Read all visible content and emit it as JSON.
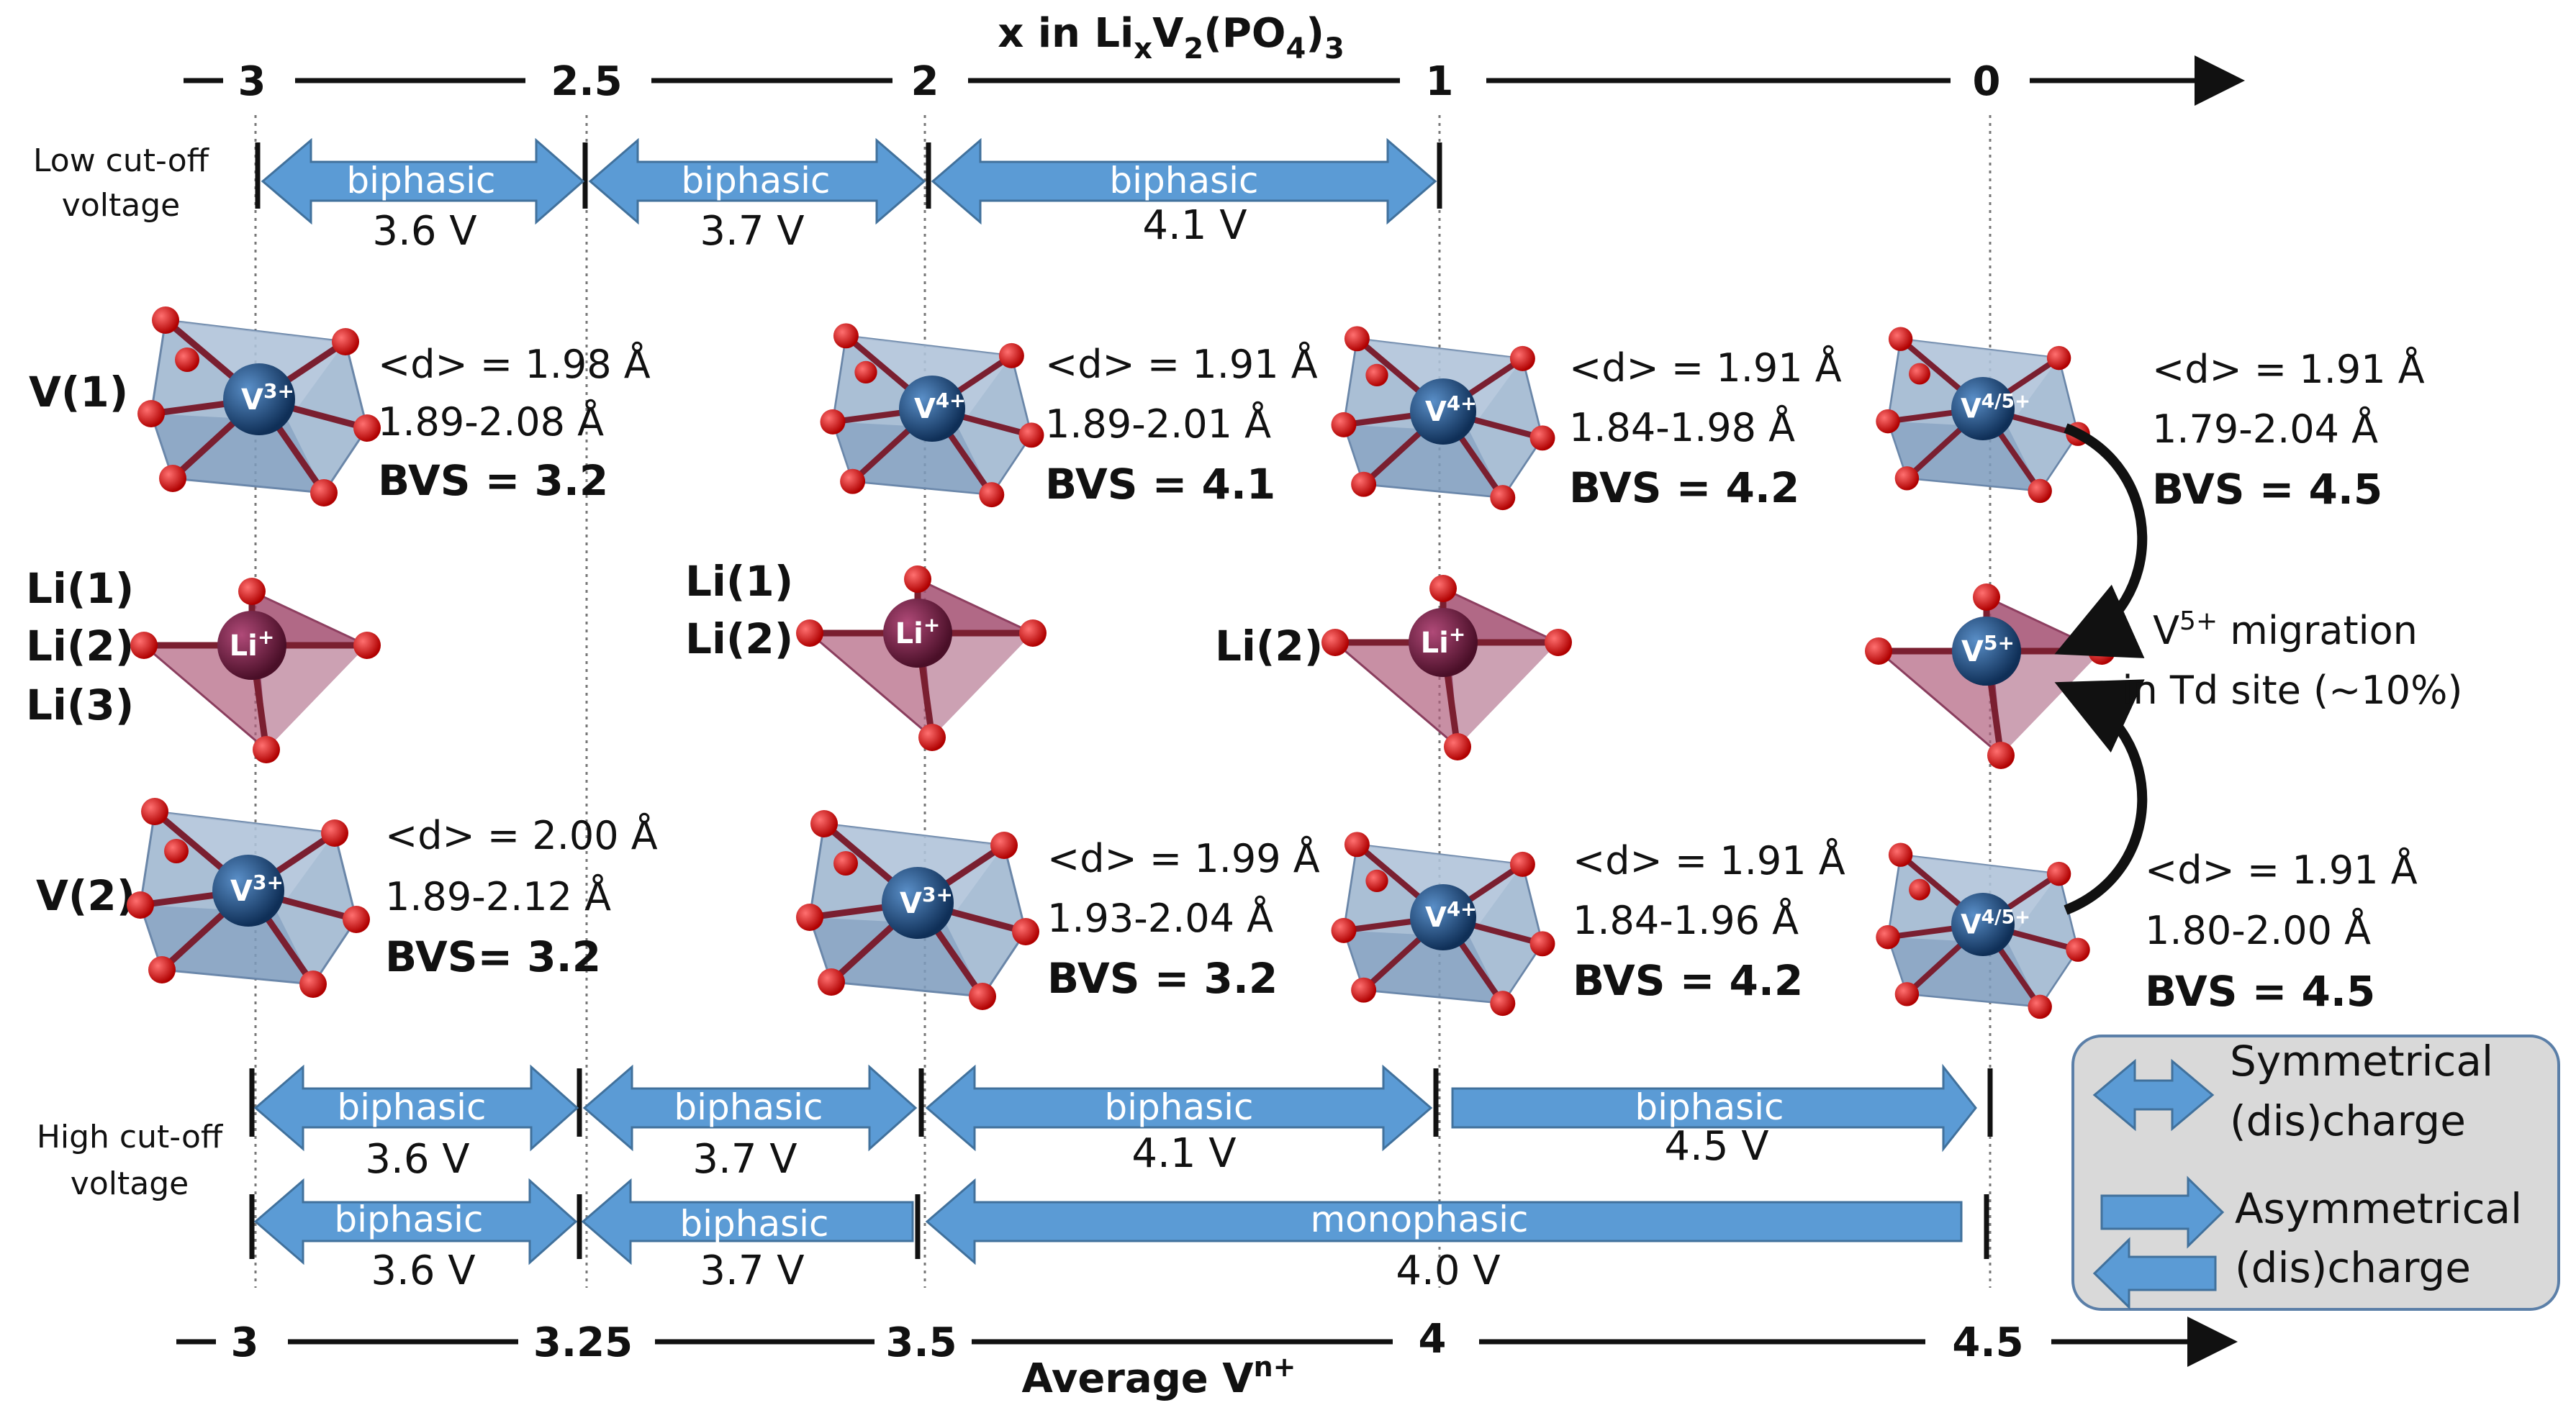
{
  "top_axis": {
    "title_prefix": "x in Li",
    "title_sub_x": "x",
    "title_mid": "V",
    "title_sub_2": "2",
    "title_po": "(PO",
    "title_sub_4": "4",
    "title_close": ")",
    "title_sub_3": "3",
    "ticks": [
      "3",
      "2.5",
      "2",
      "1",
      "0"
    ]
  },
  "bottom_axis": {
    "title": "Average V",
    "title_sup": "n+",
    "ticks": [
      "3",
      "3.25",
      "3.5",
      "4",
      "4.5"
    ]
  },
  "low_cutoff": {
    "label_line1": "Low cut-off",
    "label_line2": "voltage",
    "segments": [
      {
        "text": "biphasic",
        "voltage": "3.6 V"
      },
      {
        "text": "biphasic",
        "voltage": "3.7 V"
      },
      {
        "text": "biphasic",
        "voltage": "4.1 V"
      }
    ]
  },
  "high_cutoff": {
    "label_line1": "High cut-off",
    "label_line2": "voltage",
    "row1": [
      {
        "text": "biphasic",
        "voltage": "3.6 V"
      },
      {
        "text": "biphasic",
        "voltage": "3.7 V"
      },
      {
        "text": "biphasic",
        "voltage": "4.1 V"
      },
      {
        "text": "biphasic",
        "voltage": "4.5 V"
      }
    ],
    "row2": [
      {
        "text": "biphasic",
        "voltage": "3.6 V"
      },
      {
        "text": "biphasic",
        "voltage": "3.7 V"
      },
      {
        "text": "monophasic",
        "voltage": "4.0 V"
      }
    ]
  },
  "row_labels": {
    "v1": "V(1)",
    "v2": "V(2)",
    "li_a": [
      "Li(1)",
      "Li(2)",
      "Li(3)"
    ],
    "li_b": [
      "Li(1)",
      "Li(2)"
    ],
    "li_c": "Li(2)"
  },
  "ions": {
    "v3": "V",
    "v3_sup": "3+",
    "v4": "V",
    "v4_sup": "4+",
    "v45": "V",
    "v45_sup": "4/5+",
    "v5": "V",
    "v5_sup": "5+",
    "li": "Li",
    "li_sup": "+"
  },
  "v1_stats": [
    {
      "d": "<d> = 1.98 Å",
      "range": "1.89-2.08 Å",
      "bvs": "BVS = 3.2"
    },
    {
      "d": "<d> = 1.91 Å",
      "range": "1.89-2.01 Å",
      "bvs": "BVS = 4.1"
    },
    {
      "d": "<d> = 1.91 Å",
      "range": "1.84-1.98 Å",
      "bvs": "BVS = 4.2"
    },
    {
      "d": "<d> = 1.91 Å",
      "range": "1.79-2.04 Å",
      "bvs": "BVS = 4.5"
    }
  ],
  "v2_stats": [
    {
      "d": "<d> = 2.00 Å",
      "range": "1.89-2.12 Å",
      "bvs": "BVS= 3.2"
    },
    {
      "d": "<d> = 1.99 Å",
      "range": "1.93-2.04 Å",
      "bvs": "BVS = 3.2"
    },
    {
      "d": "<d> = 1.91 Å",
      "range": "1.84-1.96 Å",
      "bvs": "BVS = 4.2"
    },
    {
      "d": "<d> = 1.91 Å",
      "range": "1.80-2.00 Å",
      "bvs": "BVS = 4.5"
    }
  ],
  "migration": {
    "line1_prefix": "V",
    "line1_sup": "5+",
    "line1_rest": " migration",
    "line2": "in Td site (~10%)"
  },
  "legend": {
    "sym_line1": "Symmetrical",
    "sym_line2": "(dis)charge",
    "asym_line1": "Asymmetrical",
    "asym_line2": "(dis)charge"
  },
  "colors": {
    "arrow_fill": "#5b9bd5",
    "arrow_stroke": "#41719c",
    "oct_fill": "#8ea9c7",
    "tet_fill": "#b0607e",
    "vanadium": "#1f4e79",
    "lithium": "#7b1f45",
    "oxygen": "#e02020",
    "legend_bg": "#d9d9d9"
  }
}
